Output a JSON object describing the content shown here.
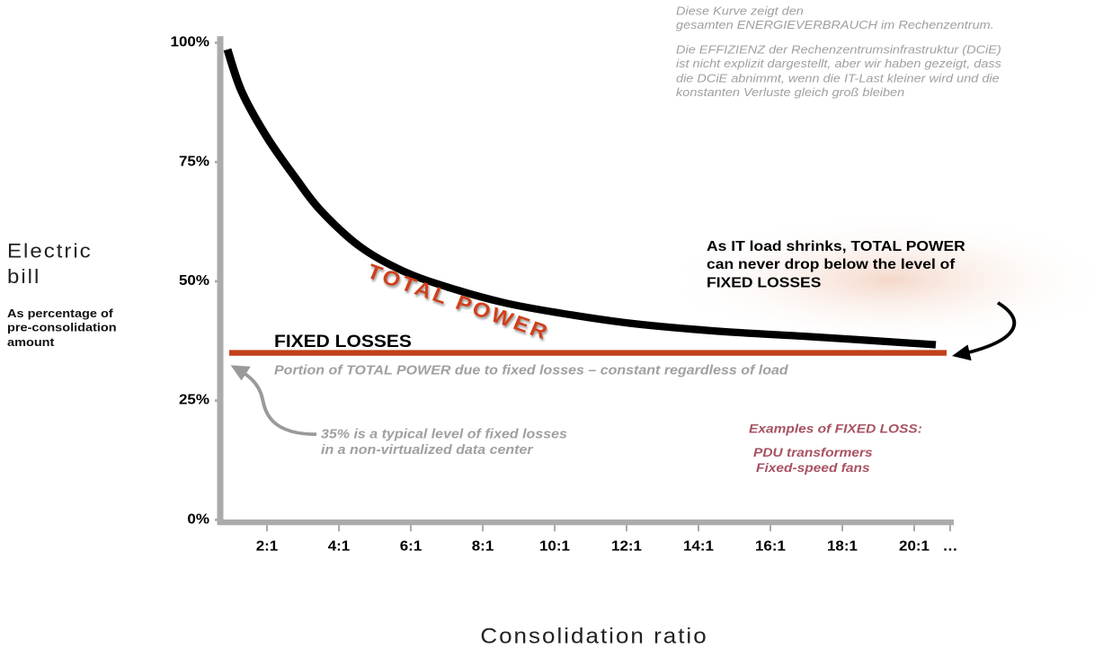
{
  "chart_data": {
    "type": "line",
    "x_label": "Consolidation ratio",
    "y_label": [
      "Electric",
      "bill"
    ],
    "y_sublabel": [
      "As percentage of",
      "pre-consolidation",
      "amount"
    ],
    "xlim": [
      0.7,
      21.1
    ],
    "xticks": [
      {
        "value": 2,
        "label": "2:1"
      },
      {
        "value": 4,
        "label": "4:1"
      },
      {
        "value": 6,
        "label": "6:1"
      },
      {
        "value": 8,
        "label": "8:1"
      },
      {
        "value": 10,
        "label": "10:1"
      },
      {
        "value": 12,
        "label": "12:1"
      },
      {
        "value": 14,
        "label": "14:1"
      },
      {
        "value": 16,
        "label": "16:1"
      },
      {
        "value": 18,
        "label": "18:1"
      },
      {
        "value": 20,
        "label": "20:1"
      },
      {
        "value": 21,
        "label": "…"
      }
    ],
    "ylim": [
      0,
      100
    ],
    "yticks": [
      {
        "value": 0,
        "label": "0%"
      },
      {
        "value": 25,
        "label": "25%"
      },
      {
        "value": 50,
        "label": "50%"
      },
      {
        "value": 75,
        "label": "75%"
      },
      {
        "value": 100,
        "label": "100%"
      }
    ],
    "series": [
      {
        "name": "TOTAL POWER",
        "color": "#000000",
        "x": [
          0.9,
          1.3,
          2,
          2.8,
          3.5,
          4.6,
          5.8,
          7.1,
          8.6,
          10.1,
          12.1,
          14.6,
          17.1,
          20.6
        ],
        "values": [
          98.6,
          89.7,
          80.2,
          71.6,
          64.8,
          57.2,
          52.1,
          48.6,
          45.5,
          43.4,
          41.2,
          39.5,
          38.4,
          36.7
        ]
      },
      {
        "name": "FIXED LOSSES",
        "color": "#c0401a",
        "x": [
          0.95,
          20.9
        ],
        "values": [
          35,
          35
        ]
      }
    ],
    "annotations": {
      "fixed_note": "Portion of TOTAL POWER due to fixed losses – constant regardless of load",
      "typical_note": [
        "35% is a typical level of fixed losses",
        "in a non-virtualized data center"
      ],
      "examples_title": "Examples of FIXED LOSS:",
      "examples": [
        "PDU transformers",
        "Fixed-speed fans"
      ],
      "shrink_note": [
        "As IT load shrinks, TOTAL POWER",
        "can never drop below the level of",
        "FIXED LOSSES"
      ],
      "de_note": [
        [
          "Diese Kurve zeigt den",
          "gesamten ENERGIEVERBRAUCH im Rechenzentrum."
        ],
        [
          "Die EFFIZIENZ der Rechenzentrumsinfrastruktur (DCiE)",
          "ist nicht explizit dargestellt, aber wir haben gezeigt, dass",
          "die DCiE abnimmt, wenn die IT-Last kleiner wird und die",
          "konstanten Verluste gleich groß bleiben"
        ]
      ]
    }
  }
}
